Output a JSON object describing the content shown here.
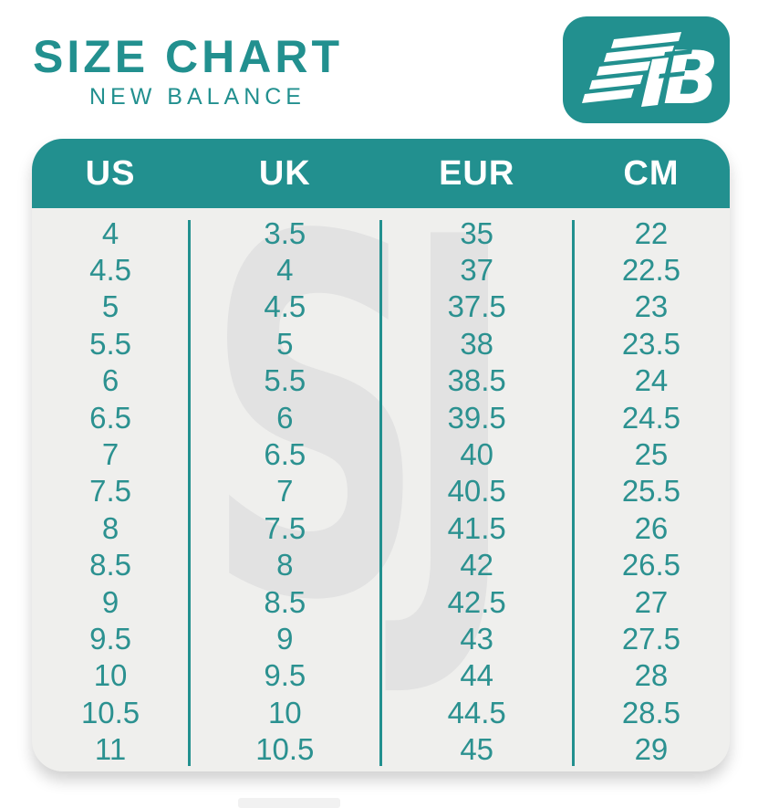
{
  "page": {
    "title": "SIZE CHART",
    "subtitle": "NEW BALANCE",
    "watermark": "SJ",
    "logo_letter": "B"
  },
  "colors": {
    "teal": "#22908f",
    "table_background": "#efefed",
    "header_text": "#ffffff",
    "watermark_gray": "#e2e2e2",
    "cell_text": "#2b9190"
  },
  "chart_data": {
    "type": "table",
    "title": "SIZE CHART",
    "subtitle": "NEW BALANCE",
    "columns": [
      "US",
      "UK",
      "EUR",
      "CM"
    ],
    "rows": [
      [
        "4",
        "3.5",
        "35",
        "22"
      ],
      [
        "4.5",
        "4",
        "37",
        "22.5"
      ],
      [
        "5",
        "4.5",
        "37.5",
        "23"
      ],
      [
        "5.5",
        "5",
        "38",
        "23.5"
      ],
      [
        "6",
        "5.5",
        "38.5",
        "24"
      ],
      [
        "6.5",
        "6",
        "39.5",
        "24.5"
      ],
      [
        "7",
        "6.5",
        "40",
        "25"
      ],
      [
        "7.5",
        "7",
        "40.5",
        "25.5"
      ],
      [
        "8",
        "7.5",
        "41.5",
        "26"
      ],
      [
        "8.5",
        "8",
        "42",
        "26.5"
      ],
      [
        "9",
        "8.5",
        "42.5",
        "27"
      ],
      [
        "9.5",
        "9",
        "43",
        "27.5"
      ],
      [
        "10",
        "9.5",
        "44",
        "28"
      ],
      [
        "10.5",
        "10",
        "44.5",
        "28.5"
      ],
      [
        "11",
        "10.5",
        "45",
        "29"
      ]
    ],
    "legend": "none",
    "grid": "column dividers only"
  }
}
